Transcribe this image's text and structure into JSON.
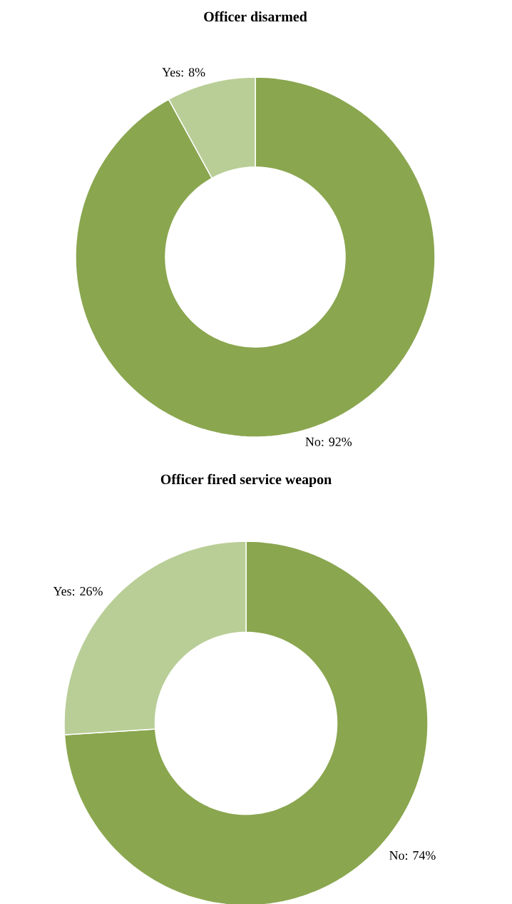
{
  "chart_data": [
    {
      "type": "donut",
      "title": "Officer disarmed",
      "categories": [
        "No",
        "Yes"
      ],
      "values": [
        92,
        8
      ],
      "colors": [
        "#8aa64f",
        "#b9ce97"
      ],
      "value_labels": [
        ": 92%",
        ": 8%"
      ],
      "legend": false
    },
    {
      "type": "donut",
      "title": "Officer fired service weapon",
      "categories": [
        "No",
        "Yes"
      ],
      "values": [
        74,
        26
      ],
      "colors": [
        "#8aa64f",
        "#b9ce97"
      ],
      "value_labels": [
        ": 74%",
        ": 26%"
      ],
      "legend": false
    }
  ]
}
